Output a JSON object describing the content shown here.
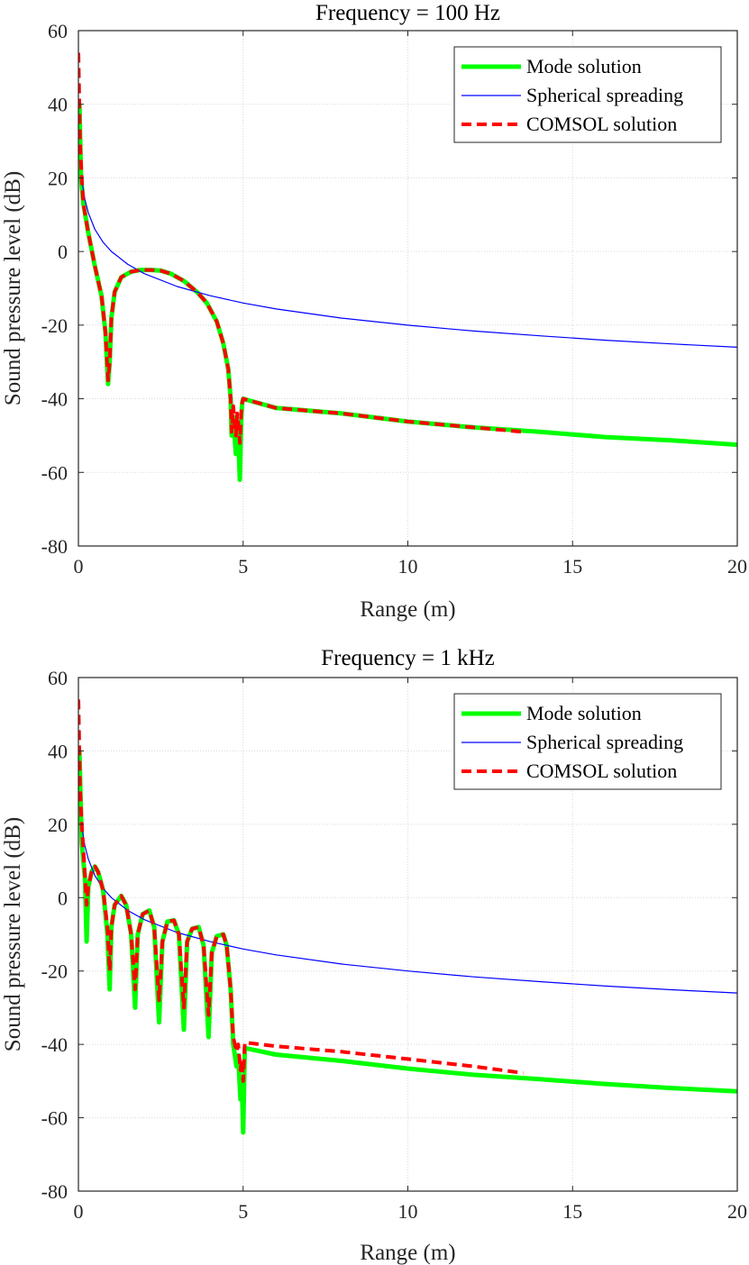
{
  "chart_data": [
    {
      "type": "line",
      "title": "Frequency = 100 Hz",
      "xlabel": "Range (m)",
      "ylabel": "Sound pressure level (dB)",
      "xlim": [
        0,
        20
      ],
      "ylim": [
        -80,
        60
      ],
      "xticks": [
        0,
        5,
        10,
        15,
        20
      ],
      "yticks": [
        60,
        40,
        20,
        0,
        -20,
        -40,
        -60,
        -80
      ],
      "xtick_labels": [
        "0",
        "5",
        "10",
        "15",
        "20"
      ],
      "ytick_labels": [
        "60",
        "40",
        "20",
        "0",
        "-20",
        "-40",
        "-60",
        "-80"
      ],
      "grid": true,
      "legend_position": "top-right",
      "legend": [
        "Mode solution",
        "Spherical spreading",
        "COMSOL solution"
      ],
      "series": [
        {
          "name": "Mode solution",
          "color": "#00ff00",
          "style": "solid",
          "x": [
            0.03,
            0.08,
            0.15,
            0.3,
            0.5,
            0.7,
            0.82,
            0.9,
            0.95,
            1.0,
            1.1,
            1.3,
            1.6,
            1.9,
            2.2,
            2.5,
            2.8,
            3.2,
            3.6,
            3.9,
            4.2,
            4.4,
            4.55,
            4.62,
            4.65,
            4.7,
            4.78,
            4.82,
            4.86,
            4.9,
            4.94,
            4.97,
            5.0,
            6,
            8,
            10,
            12,
            14,
            16,
            18,
            20
          ],
          "y": [
            40,
            20,
            13,
            5,
            -4,
            -12,
            -22,
            -36,
            -30,
            -18,
            -11,
            -7,
            -5.5,
            -5,
            -5,
            -5.2,
            -6,
            -8,
            -11,
            -14,
            -19,
            -25,
            -32,
            -40,
            -50,
            -45,
            -55,
            -48,
            -52,
            -62,
            -46,
            -41,
            -40,
            -42.5,
            -44,
            -46.2,
            -47.8,
            -49,
            -50.4,
            -51.3,
            -52.5
          ]
        },
        {
          "name": "Spherical spreading",
          "color": "#0000ff",
          "style": "solid",
          "x": [
            0.1,
            0.15,
            0.2,
            0.3,
            0.5,
            0.75,
            1,
            1.5,
            2,
            3,
            4,
            5,
            6,
            8,
            10,
            12,
            14,
            16,
            18,
            20
          ],
          "y": [
            20,
            16.5,
            14,
            10.5,
            6,
            2.5,
            0,
            -3.5,
            -6,
            -9.5,
            -12,
            -14,
            -15.6,
            -18.1,
            -20,
            -21.6,
            -22.9,
            -24.1,
            -25.1,
            -26
          ]
        },
        {
          "name": "COMSOL solution",
          "color": "#ff0000",
          "style": "dashed",
          "x": [
            0.0,
            0.02,
            0.05,
            0.1,
            0.15,
            0.3,
            0.5,
            0.7,
            0.82,
            0.9,
            0.95,
            1.0,
            1.1,
            1.3,
            1.6,
            1.9,
            2.2,
            2.5,
            2.8,
            3.2,
            3.6,
            3.9,
            4.2,
            4.4,
            4.55,
            4.62,
            4.65,
            4.7,
            4.78,
            4.82,
            4.86,
            4.9,
            4.94,
            4.97,
            5.0,
            6,
            8,
            10,
            12,
            13.5
          ],
          "y": [
            54,
            45,
            30,
            20,
            13,
            5,
            -4,
            -12,
            -22,
            -35,
            -30,
            -18,
            -11,
            -7,
            -5.5,
            -5,
            -5,
            -5.2,
            -6,
            -8,
            -11,
            -14,
            -19,
            -25,
            -32,
            -40,
            -49,
            -42,
            -50,
            -44,
            -47,
            -52,
            -44,
            -41,
            -40,
            -42.5,
            -44,
            -46.2,
            -47.8,
            -49
          ]
        }
      ]
    },
    {
      "type": "line",
      "title": "Frequency = 1 kHz",
      "xlabel": "Range (m)",
      "ylabel": "Sound pressure level (dB)",
      "xlim": [
        0,
        20
      ],
      "ylim": [
        -80,
        60
      ],
      "xticks": [
        0,
        5,
        10,
        15,
        20
      ],
      "yticks": [
        60,
        40,
        20,
        0,
        -20,
        -40,
        -60,
        -80
      ],
      "xtick_labels": [
        "0",
        "5",
        "10",
        "15",
        "20"
      ],
      "ytick_labels": [
        "60",
        "40",
        "20",
        "0",
        "-20",
        "-40",
        "-60",
        "-80"
      ],
      "grid": true,
      "legend_position": "top-right",
      "legend": [
        "Mode solution",
        "Spherical spreading",
        "COMSOL solution"
      ],
      "series": [
        {
          "name": "Mode solution",
          "color": "#00ff00",
          "style": "solid",
          "x": [
            0.03,
            0.1,
            0.2,
            0.25,
            0.3,
            0.4,
            0.5,
            0.6,
            0.75,
            0.88,
            0.95,
            1.0,
            1.1,
            1.3,
            1.45,
            1.6,
            1.72,
            1.8,
            1.95,
            2.15,
            2.3,
            2.45,
            2.55,
            2.7,
            2.9,
            3.05,
            3.2,
            3.3,
            3.45,
            3.65,
            3.8,
            3.95,
            4.05,
            4.2,
            4.4,
            4.5,
            4.62,
            4.7,
            4.8,
            4.85,
            4.92,
            4.96,
            5.0,
            5.05,
            6,
            8,
            10,
            12,
            14,
            16,
            18,
            20
          ],
          "y": [
            40,
            15,
            5,
            -12,
            3,
            7,
            8.5,
            7,
            2,
            -10,
            -25,
            -8,
            -2,
            0.5,
            -2,
            -10,
            -30,
            -10,
            -4.5,
            -3.5,
            -8,
            -34,
            -12,
            -6.5,
            -6.2,
            -10,
            -36,
            -12,
            -8.5,
            -8,
            -13,
            -38,
            -15,
            -10.5,
            -10,
            -13,
            -25,
            -40,
            -46,
            -43,
            -55,
            -50,
            -64,
            -41,
            -42.8,
            -44.5,
            -46.6,
            -48.3,
            -49.5,
            -50.8,
            -51.9,
            -52.8
          ]
        },
        {
          "name": "Spherical spreading",
          "color": "#0000ff",
          "style": "solid",
          "x": [
            0.1,
            0.15,
            0.2,
            0.3,
            0.5,
            0.75,
            1,
            1.5,
            2,
            3,
            4,
            5,
            6,
            8,
            10,
            12,
            14,
            16,
            18,
            20
          ],
          "y": [
            20,
            16.5,
            14,
            10.5,
            6,
            2.5,
            0,
            -3.5,
            -6,
            -9.5,
            -12,
            -14,
            -15.6,
            -18.1,
            -20,
            -21.6,
            -22.9,
            -24.1,
            -25.1,
            -26
          ]
        },
        {
          "name": "COMSOL solution",
          "color": "#ff0000",
          "style": "dashed",
          "x": [
            0.0,
            0.02,
            0.05,
            0.1,
            0.2,
            0.25,
            0.3,
            0.4,
            0.5,
            0.6,
            0.75,
            0.88,
            0.95,
            1.0,
            1.1,
            1.3,
            1.45,
            1.6,
            1.72,
            1.8,
            1.95,
            2.15,
            2.3,
            2.45,
            2.55,
            2.7,
            2.9,
            3.05,
            3.2,
            3.3,
            3.45,
            3.65,
            3.8,
            3.95,
            4.05,
            4.2,
            4.4,
            4.5,
            4.62,
            4.7,
            4.8,
            4.85,
            4.92,
            4.96,
            5.0,
            5.05,
            6,
            8,
            10,
            12,
            13.5
          ],
          "y": [
            54,
            45,
            30,
            20,
            6,
            -2,
            3,
            7,
            8.5,
            7,
            2,
            -8,
            -20,
            -8,
            -2,
            0.5,
            -2,
            -10,
            -25,
            -10,
            -4.5,
            -3.5,
            -8,
            -28,
            -12,
            -6.5,
            -6.2,
            -10,
            -30,
            -12,
            -8.5,
            -8,
            -13,
            -32,
            -15,
            -10.5,
            -10,
            -13,
            -25,
            -38,
            -42,
            -40,
            -47,
            -44,
            -50,
            -39.5,
            -40.5,
            -42,
            -44,
            -46,
            -47.8
          ]
        }
      ]
    }
  ]
}
